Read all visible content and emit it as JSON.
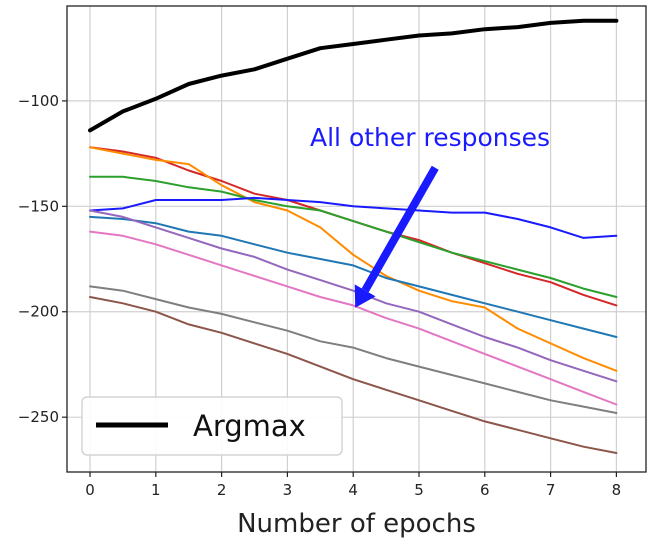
{
  "chart_data": {
    "type": "line",
    "title": "",
    "xlabel": "Number of epochs",
    "ylabel": "",
    "xlim": [
      -0.35,
      8.45
    ],
    "ylim": [
      -276,
      -55
    ],
    "xticks": [
      0,
      1,
      2,
      3,
      4,
      5,
      6,
      7,
      8
    ],
    "yticks": [
      -250,
      -200,
      -150,
      -100
    ],
    "xtick_labels": [
      "0",
      "1",
      "2",
      "3",
      "4",
      "5",
      "6",
      "7",
      "8"
    ],
    "ytick_labels": [
      "−250",
      "−200",
      "−150",
      "−100"
    ],
    "grid": true,
    "legend": {
      "position": "bottom-left",
      "entries": [
        {
          "label": "Argmax",
          "color": "#000000"
        }
      ]
    },
    "annotation": {
      "text": "All other responses",
      "arrow_color": "#1a1aff",
      "points_to": [
        4,
        -200
      ]
    },
    "series": [
      {
        "name": "Argmax",
        "color": "#000000",
        "width": 4,
        "x": [
          0,
          0.5,
          1,
          1.5,
          2,
          2.5,
          3,
          3.5,
          4,
          4.5,
          5,
          5.5,
          6,
          6.5,
          7,
          7.5,
          8
        ],
        "values": [
          -114,
          -105,
          -99,
          -92,
          -88,
          -85,
          -80,
          -75,
          -73,
          -71,
          -69,
          -68,
          -66,
          -65,
          -63,
          -62,
          -62
        ]
      },
      {
        "name": "red",
        "color": "#d62728",
        "width": 2,
        "x": [
          0,
          0.5,
          1,
          1.5,
          2,
          2.5,
          3,
          3.5,
          4,
          4.5,
          5,
          5.5,
          6,
          6.5,
          7,
          7.5,
          8
        ],
        "values": [
          -122,
          -124,
          -127,
          -133,
          -138,
          -144,
          -147,
          -152,
          -157,
          -162,
          -166,
          -172,
          -177,
          -182,
          -186,
          -192,
          -197
        ]
      },
      {
        "name": "orange",
        "color": "#ff8c00",
        "width": 2,
        "x": [
          0,
          0.5,
          1,
          1.5,
          2,
          2.5,
          3,
          3.5,
          4,
          4.5,
          5,
          5.5,
          6,
          6.5,
          7,
          7.5,
          8
        ],
        "values": [
          -122,
          -125,
          -128,
          -130,
          -140,
          -148,
          -152,
          -160,
          -173,
          -183,
          -190,
          -195,
          -198,
          -208,
          -215,
          -222,
          -228
        ]
      },
      {
        "name": "green",
        "color": "#2ca02c",
        "width": 2,
        "x": [
          0,
          0.5,
          1,
          1.5,
          2,
          2.5,
          3,
          3.5,
          4,
          4.5,
          5,
          5.5,
          6,
          6.5,
          7,
          7.5,
          8
        ],
        "values": [
          -136,
          -136,
          -138,
          -141,
          -143,
          -147,
          -150,
          -152,
          -157,
          -162,
          -167,
          -172,
          -176,
          -180,
          -184,
          -189,
          -193
        ]
      },
      {
        "name": "blue",
        "color": "#1a1aff",
        "width": 2,
        "x": [
          0,
          0.5,
          1,
          1.5,
          2,
          2.5,
          3,
          3.5,
          4,
          4.5,
          5,
          5.5,
          6,
          6.5,
          7,
          7.5,
          8
        ],
        "values": [
          -152,
          -151,
          -147,
          -147,
          -147,
          -146,
          -147,
          -148,
          -150,
          -151,
          -152,
          -153,
          -153,
          -156,
          -160,
          -165,
          -164
        ]
      },
      {
        "name": "steelblue",
        "color": "#1f77b4",
        "width": 2,
        "x": [
          0,
          0.5,
          1,
          1.5,
          2,
          2.5,
          3,
          3.5,
          4,
          4.5,
          5,
          5.5,
          6,
          6.5,
          7,
          7.5,
          8
        ],
        "values": [
          -155,
          -156,
          -158,
          -162,
          -164,
          -168,
          -172,
          -175,
          -178,
          -184,
          -188,
          -192,
          -196,
          -200,
          -204,
          -208,
          -212
        ]
      },
      {
        "name": "purple",
        "color": "#9467bd",
        "width": 2,
        "x": [
          0,
          0.5,
          1,
          1.5,
          2,
          2.5,
          3,
          3.5,
          4,
          4.5,
          5,
          5.5,
          6,
          6.5,
          7,
          7.5,
          8
        ],
        "values": [
          -152,
          -155,
          -160,
          -165,
          -170,
          -174,
          -180,
          -185,
          -190,
          -196,
          -200,
          -206,
          -212,
          -217,
          -223,
          -228,
          -233
        ]
      },
      {
        "name": "pink",
        "color": "#e377c2",
        "width": 2,
        "x": [
          0,
          0.5,
          1,
          1.5,
          2,
          2.5,
          3,
          3.5,
          4,
          4.5,
          5,
          5.5,
          6,
          6.5,
          7,
          7.5,
          8
        ],
        "values": [
          -162,
          -164,
          -168,
          -173,
          -178,
          -183,
          -188,
          -193,
          -197,
          -203,
          -208,
          -214,
          -220,
          -226,
          -232,
          -238,
          -244
        ]
      },
      {
        "name": "gray",
        "color": "#7f7f7f",
        "width": 2,
        "x": [
          0,
          0.5,
          1,
          1.5,
          2,
          2.5,
          3,
          3.5,
          4,
          4.5,
          5,
          5.5,
          6,
          6.5,
          7,
          7.5,
          8
        ],
        "values": [
          -188,
          -190,
          -194,
          -198,
          -201,
          -205,
          -209,
          -214,
          -217,
          -222,
          -226,
          -230,
          -234,
          -238,
          -242,
          -245,
          -248
        ]
      },
      {
        "name": "brown",
        "color": "#8c564b",
        "width": 2,
        "x": [
          0,
          0.5,
          1,
          1.5,
          2,
          2.5,
          3,
          3.5,
          4,
          4.5,
          5,
          5.5,
          6,
          6.5,
          7,
          7.5,
          8
        ],
        "values": [
          -193,
          -196,
          -200,
          -206,
          -210,
          -215,
          -220,
          -226,
          -232,
          -237,
          -242,
          -247,
          -252,
          -256,
          -260,
          -264,
          -267
        ]
      }
    ]
  }
}
